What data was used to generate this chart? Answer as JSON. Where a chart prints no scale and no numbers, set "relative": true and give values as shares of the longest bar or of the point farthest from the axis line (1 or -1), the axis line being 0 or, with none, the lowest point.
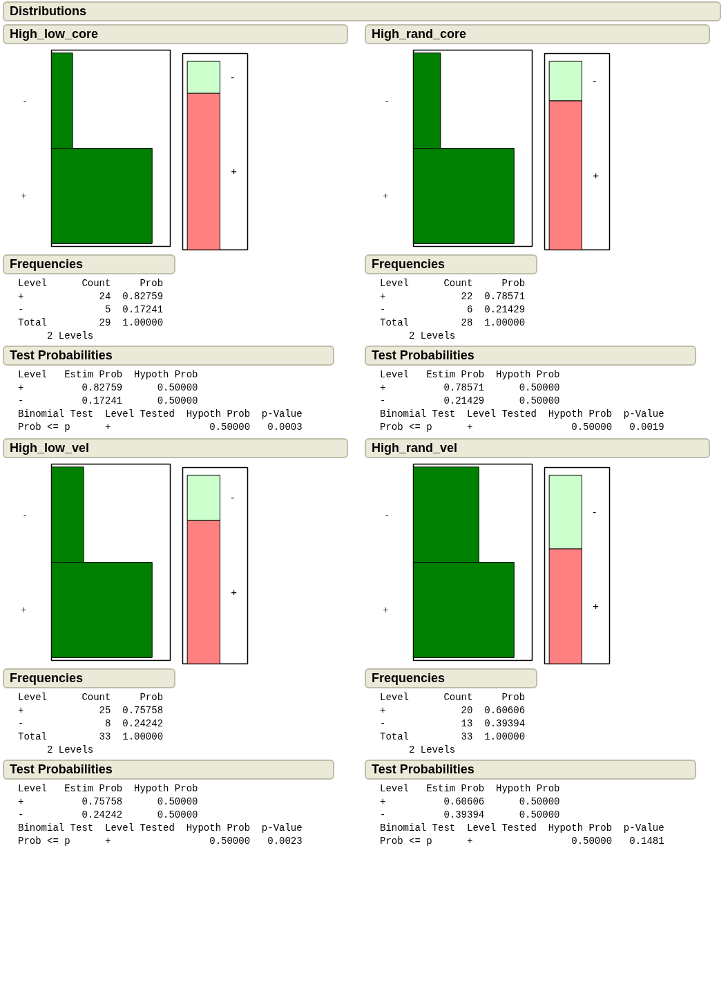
{
  "chart_data": [
    {
      "type": "other",
      "title": "Distributions"
    },
    {
      "type": "bar",
      "title": "High_low_core",
      "orientation": "horizontal",
      "relative": true,
      "categories": [
        "-",
        "+"
      ],
      "values": [
        0.21,
        1
      ],
      "color": "#008000",
      "annotations": [
        "Frequencies",
        "Level      Count     Prob",
        "+             24  0.82759",
        "-              5  0.17241",
        "Total         29  1.00000",
        "     2 Levels",
        "Test Probabilities",
        "Level   Estim Prob  Hypoth Prob",
        "+          0.82759      0.50000",
        "-          0.17241      0.50000",
        "Binomial Test  Level Tested  Hypoth Prob  p-Value",
        "Prob <= p      +                 0.50000   0.0003"
      ]
    },
    {
      "type": "bar",
      "stacked": true,
      "relative": true,
      "categories": [
        null
      ],
      "series": [
        {
          "name": "+",
          "color": "#ff8080",
          "values": [
            0.83
          ]
        },
        {
          "name": "-",
          "color": "#ccffcc",
          "values": [
            0.17
          ]
        }
      ]
    },
    {
      "type": "bar",
      "title": "High_rand_core",
      "orientation": "horizontal",
      "relative": true,
      "categories": [
        "-",
        "+"
      ],
      "values": [
        0.27,
        1
      ],
      "color": "#008000",
      "annotations": [
        "Frequencies",
        "Level      Count     Prob",
        "+             22  0.78571",
        "-              6  0.21429",
        "Total         28  1.00000",
        "     2 Levels",
        "Test Probabilities",
        "Level   Estim Prob  Hypoth Prob",
        "+          0.78571      0.50000",
        "-          0.21429      0.50000",
        "Binomial Test  Level Tested  Hypoth Prob  p-Value",
        "Prob <= p      +                 0.50000   0.0019"
      ]
    },
    {
      "type": "bar",
      "stacked": true,
      "relative": true,
      "categories": [
        null
      ],
      "series": [
        {
          "name": "+",
          "color": "#ff8080",
          "values": [
            0.79
          ]
        },
        {
          "name": "-",
          "color": "#ccffcc",
          "values": [
            0.21
          ]
        }
      ]
    },
    {
      "type": "bar",
      "title": "High_low_vel",
      "orientation": "horizontal",
      "relative": true,
      "categories": [
        "-",
        "+"
      ],
      "values": [
        0.32,
        1
      ],
      "color": "#008000",
      "annotations": [
        "Frequencies",
        "Level      Count     Prob",
        "+             25  0.75758",
        "-              8  0.24242",
        "Total         33  1.00000",
        "     2 Levels",
        "Test Probabilities",
        "Level   Estim Prob  Hypoth Prob",
        "+          0.75758      0.50000",
        "-          0.24242      0.50000",
        "Binomial Test  Level Tested  Hypoth Prob  p-Value",
        "Prob <= p      +                 0.50000   0.0023"
      ]
    },
    {
      "type": "bar",
      "stacked": true,
      "relative": true,
      "categories": [
        null
      ],
      "series": [
        {
          "name": "+",
          "color": "#ff8080",
          "values": [
            0.76
          ]
        },
        {
          "name": "-",
          "color": "#ccffcc",
          "values": [
            0.24
          ]
        }
      ]
    },
    {
      "type": "bar",
      "title": "High_rand_vel",
      "orientation": "horizontal",
      "relative": true,
      "categories": [
        "-",
        "+"
      ],
      "values": [
        0.65,
        1
      ],
      "color": "#008000",
      "annotations": [
        "Frequencies",
        "Level      Count     Prob",
        "+             20  0.60606",
        "-             13  0.39394",
        "Total         33  1.00000",
        "     2 Levels",
        "Test Probabilities",
        "Level   Estim Prob  Hypoth Prob",
        "+          0.60606      0.50000",
        "-          0.39394      0.50000",
        "Binomial Test  Level Tested  Hypoth Prob  p-Value",
        "Prob <= p      +                 0.50000   0.1481"
      ]
    },
    {
      "type": "bar",
      "stacked": true,
      "relative": true,
      "categories": [
        null
      ],
      "series": [
        {
          "name": "+",
          "color": "#ff8080",
          "values": [
            0.61
          ]
        },
        {
          "name": "-",
          "color": "#ccffcc",
          "values": [
            0.39
          ]
        }
      ]
    }
  ]
}
